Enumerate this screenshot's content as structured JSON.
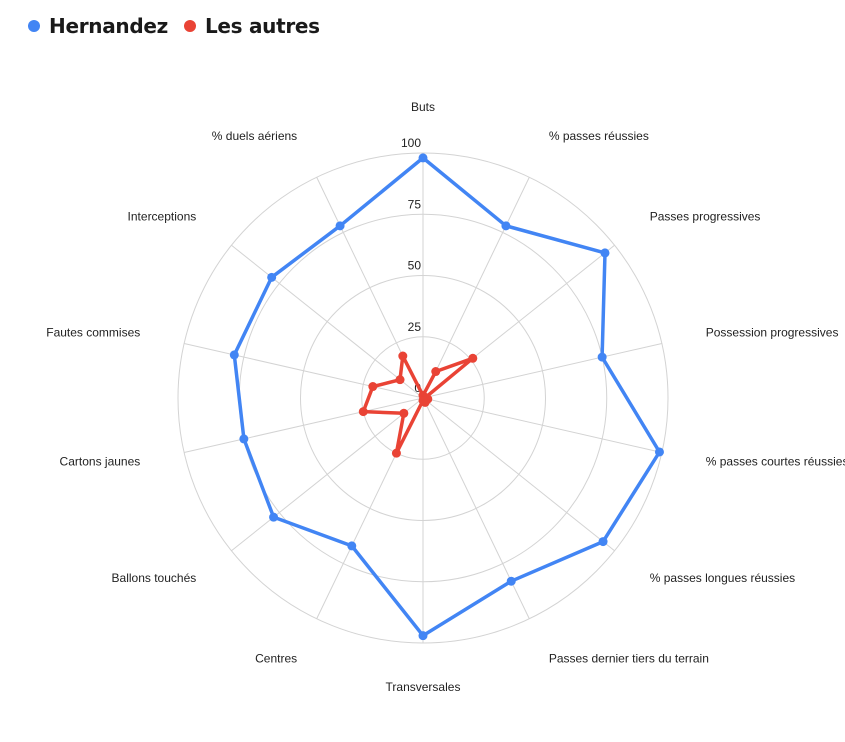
{
  "legend": {
    "items": [
      {
        "label": "Hernandez",
        "color": "#4285f4"
      },
      {
        "label": "Les autres",
        "color": "#e94335"
      }
    ]
  },
  "chart_data": {
    "type": "radar",
    "title": "",
    "axes": [
      "Buts",
      "% passes réussies",
      "Passes progressives",
      "Possession progressives",
      "% passes courtes réussies",
      "% passes longues réussies",
      "Passes dernier tiers du terrain",
      "Transversales",
      "Centres",
      "Ballons touchés",
      "Cartons jaunes",
      "Fautes commises",
      "Interceptions",
      "% duels aériens"
    ],
    "range": [
      0,
      100
    ],
    "ticks": [
      0,
      25,
      50,
      75,
      100
    ],
    "grid": true,
    "legend_position": "top-left",
    "series": [
      {
        "name": "Hernandez",
        "color": "#4285f4",
        "values": [
          98,
          78,
          95,
          75,
          99,
          94,
          83,
          97,
          67,
          78,
          75,
          79,
          79,
          78
        ]
      },
      {
        "name": "Les autres",
        "color": "#e94335",
        "values": [
          1,
          12,
          26,
          1,
          2,
          1,
          2,
          1,
          25,
          10,
          25,
          21,
          12,
          19
        ]
      }
    ]
  }
}
